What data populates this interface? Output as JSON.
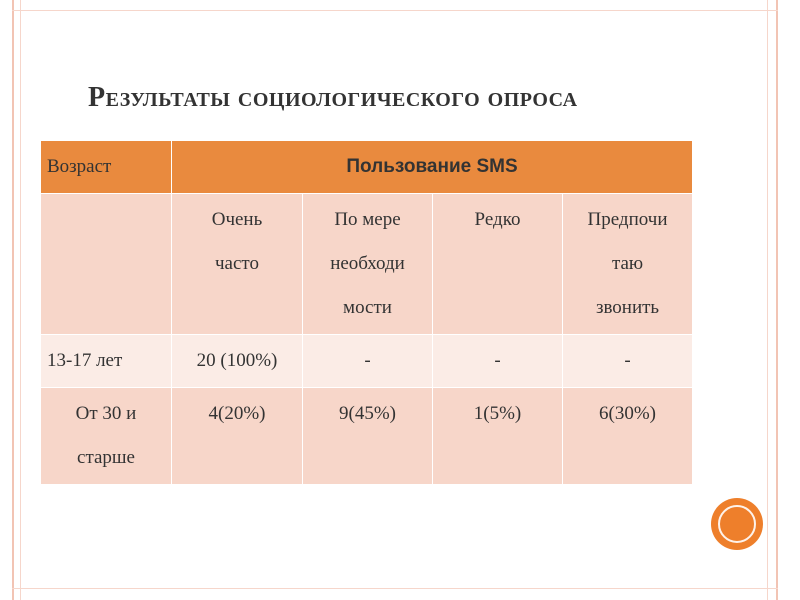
{
  "slide": {
    "title": "Результаты социологического опроса"
  },
  "table": {
    "header": {
      "age": "Возраст",
      "usage": "Пользование SMS"
    },
    "subheaders": [
      "Очень часто",
      "По мере необходимости",
      "Редко",
      "Предпочитаю звонить"
    ],
    "subheader_lines": [
      [
        "Очень",
        "часто"
      ],
      [
        "По мере",
        "необходи",
        "мости"
      ],
      [
        "Редко"
      ],
      [
        "Предпочи",
        "таю",
        "звонить"
      ]
    ],
    "rows": [
      {
        "age": "13-17 лет",
        "values": [
          "20 (100%)",
          "-",
          "-",
          "-"
        ]
      },
      {
        "age_lines": [
          "От 30 и",
          "старше"
        ],
        "values": [
          "4(20%)",
          "9(45%)",
          "1(5%)",
          "6(30%)"
        ]
      }
    ]
  },
  "colors": {
    "header_bg": "#e98a3e",
    "row_dark": "#f7d6c9",
    "row_light": "#fbece6",
    "accent_dot": "#ee7f2b"
  }
}
